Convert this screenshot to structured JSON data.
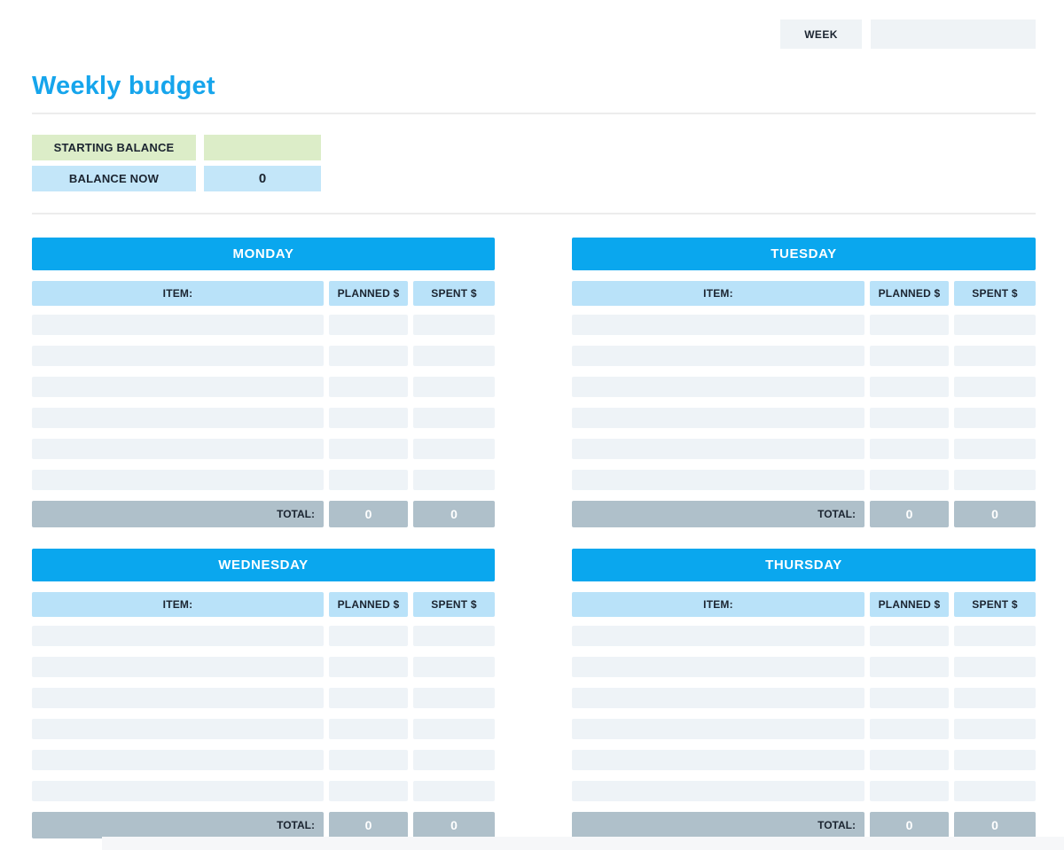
{
  "header": {
    "week_label": "WEEK",
    "week_value": ""
  },
  "page": {
    "title": "Weekly budget"
  },
  "balance": {
    "starting_label": "STARTING BALANCE",
    "starting_value": "",
    "now_label": "BALANCE NOW",
    "now_value": "0"
  },
  "table": {
    "item_header": "ITEM:",
    "planned_header": "PLANNED $",
    "spent_header": "SPENT $",
    "total_label": "TOTAL:",
    "empty_rows": 6
  },
  "days": [
    {
      "name": "MONDAY",
      "total_planned": "0",
      "total_spent": "0"
    },
    {
      "name": "TUESDAY",
      "total_planned": "0",
      "total_spent": "0"
    },
    {
      "name": "WEDNESDAY",
      "total_planned": "0",
      "total_spent": "0"
    },
    {
      "name": "THURSDAY",
      "total_planned": "0",
      "total_spent": "0"
    }
  ],
  "colors": {
    "accent_blue": "#0aa7ee",
    "light_blue": "#b9e2f9",
    "balance_blue": "#c3e6f9",
    "light_green": "#dcedc8",
    "row_gray": "#eef3f7",
    "total_gray": "#afc0ca",
    "title_blue": "#16a5ec",
    "field_gray": "#eff3f6"
  }
}
